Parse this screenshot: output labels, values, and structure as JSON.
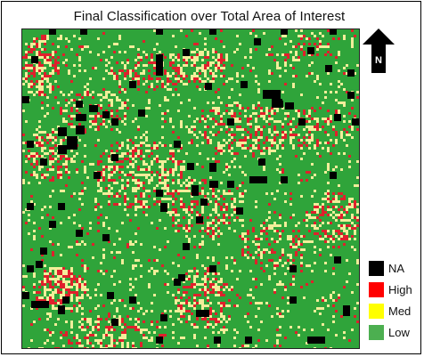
{
  "title": "Final Classification over Total Area of Interest",
  "north_arrow": {
    "icon": "north-arrow-icon",
    "label": "N"
  },
  "legend": {
    "items": [
      {
        "label": "NA",
        "color": "#000000"
      },
      {
        "label": "High",
        "color": "#ff0000"
      },
      {
        "label": "Med",
        "color": "#ffff00"
      },
      {
        "label": "Low",
        "color": "#4caf50"
      }
    ]
  },
  "classes": {
    "low": "#2fa43a",
    "med": "#f2ee9a",
    "high": "#e0202c",
    "na": "#000000"
  }
}
